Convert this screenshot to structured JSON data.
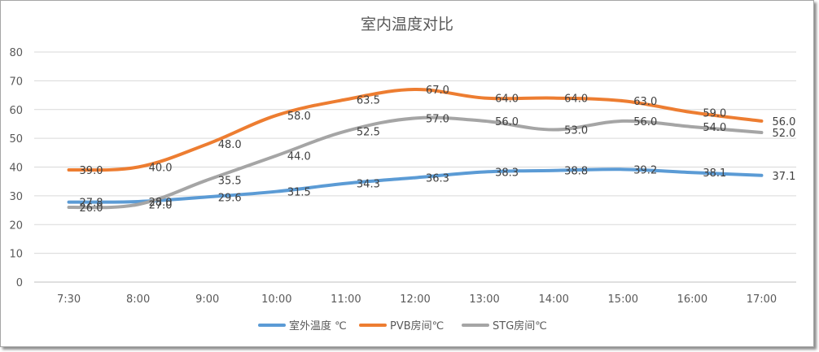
{
  "chart_data": {
    "type": "line",
    "title": "室内温度对比",
    "xlabel": "",
    "ylabel": "",
    "categories": [
      "7:30",
      "8:00",
      "9:00",
      "10:00",
      "11:00",
      "12:00",
      "13:00",
      "14:00",
      "15:00",
      "16:00",
      "17:00"
    ],
    "ylim": [
      0,
      80
    ],
    "yticks": [
      0,
      10,
      20,
      30,
      40,
      50,
      60,
      70,
      80
    ],
    "grid": true,
    "legend_position": "bottom",
    "series": [
      {
        "name": "室外温度 ℃",
        "color": "#5b9bd5",
        "values": [
          27.8,
          28.0,
          29.6,
          31.5,
          34.3,
          36.3,
          38.3,
          38.8,
          39.2,
          38.1,
          37.1
        ]
      },
      {
        "name": "PVB房间℃",
        "color": "#ed7d31",
        "values": [
          39.0,
          40.0,
          48.0,
          58.0,
          63.5,
          67.0,
          64.0,
          64.0,
          63.0,
          59.0,
          56.0
        ]
      },
      {
        "name": "STG房间℃",
        "color": "#a5a5a5",
        "values": [
          26.0,
          27.0,
          35.5,
          44.0,
          52.5,
          57.0,
          56.0,
          53.0,
          56.0,
          54.0,
          52.0
        ]
      }
    ]
  }
}
